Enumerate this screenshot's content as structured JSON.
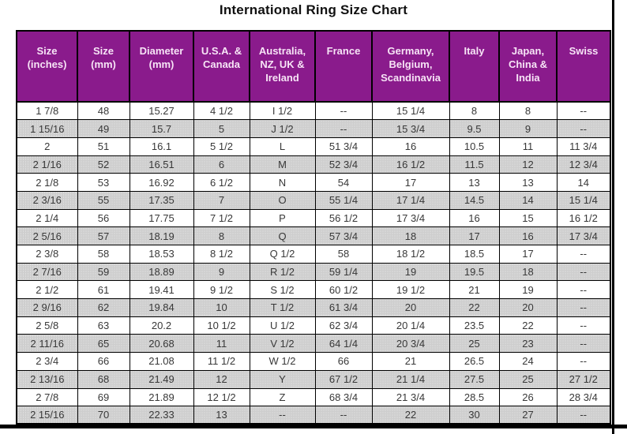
{
  "title": "International Ring Size Chart",
  "colors": {
    "header_bg": "#8A1B8C",
    "header_text": "#F7E4F6",
    "stripe_gray": "#CECECE",
    "cell_text": "#383838",
    "border": "#000000"
  },
  "chart_data": {
    "type": "table",
    "title": "International Ring Size Chart",
    "columns": [
      "Size (inches)",
      "Size (mm)",
      "Diameter (mm)",
      "U.S.A. & Canada",
      "Australia, NZ, UK & Ireland",
      "France",
      "Germany, Belgium, Scandinavia",
      "Italy",
      "Japan, China & India",
      "Swiss"
    ],
    "rows": [
      [
        "1 7/8",
        "48",
        "15.27",
        "4 1/2",
        "I 1/2",
        "--",
        "15 1/4",
        "8",
        "8",
        "--"
      ],
      [
        "1 15/16",
        "49",
        "15.7",
        "5",
        "J 1/2",
        "--",
        "15 3/4",
        "9.5",
        "9",
        "--"
      ],
      [
        "2",
        "51",
        "16.1",
        "5 1/2",
        "L",
        "51 3/4",
        "16",
        "10.5",
        "11",
        "11 3/4"
      ],
      [
        "2 1/16",
        "52",
        "16.51",
        "6",
        "M",
        "52 3/4",
        "16 1/2",
        "11.5",
        "12",
        "12 3/4"
      ],
      [
        "2 1/8",
        "53",
        "16.92",
        "6 1/2",
        "N",
        "54",
        "17",
        "13",
        "13",
        "14"
      ],
      [
        "2 3/16",
        "55",
        "17.35",
        "7",
        "O",
        "55 1/4",
        "17 1/4",
        "14.5",
        "14",
        "15 1/4"
      ],
      [
        "2 1/4",
        "56",
        "17.75",
        "7 1/2",
        "P",
        "56 1/2",
        "17 3/4",
        "16",
        "15",
        "16 1/2"
      ],
      [
        "2 5/16",
        "57",
        "18.19",
        "8",
        "Q",
        "57 3/4",
        "18",
        "17",
        "16",
        "17 3/4"
      ],
      [
        "2 3/8",
        "58",
        "18.53",
        "8 1/2",
        "Q 1/2",
        "58",
        "18 1/2",
        "18.5",
        "17",
        "--"
      ],
      [
        "2 7/16",
        "59",
        "18.89",
        "9",
        "R 1/2",
        "59 1/4",
        "19",
        "19.5",
        "18",
        "--"
      ],
      [
        "2 1/2",
        "61",
        "19.41",
        "9 1/2",
        "S 1/2",
        "60 1/2",
        "19 1/2",
        "21",
        "19",
        "--"
      ],
      [
        "2 9/16",
        "62",
        "19.84",
        "10",
        "T 1/2",
        "61 3/4",
        "20",
        "22",
        "20",
        "--"
      ],
      [
        "2 5/8",
        "63",
        "20.2",
        "10 1/2",
        "U 1/2",
        "62 3/4",
        "20 1/4",
        "23.5",
        "22",
        "--"
      ],
      [
        "2 11/16",
        "65",
        "20.68",
        "11",
        "V 1/2",
        "64 1/4",
        "20 3/4",
        "25",
        "23",
        "--"
      ],
      [
        "2 3/4",
        "66",
        "21.08",
        "11 1/2",
        "W 1/2",
        "66",
        "21",
        "26.5",
        "24",
        "--"
      ],
      [
        "2 13/16",
        "68",
        "21.49",
        "12",
        "Y",
        "67 1/2",
        "21 1/4",
        "27.5",
        "25",
        "27 1/2"
      ],
      [
        "2 7/8",
        "69",
        "21.89",
        "12 1/2",
        "Z",
        "68 3/4",
        "21 3/4",
        "28.5",
        "26",
        "28 3/4"
      ],
      [
        "2 15/16",
        "70",
        "22.33",
        "13",
        "--",
        "--",
        "22",
        "30",
        "27",
        "--"
      ]
    ]
  }
}
